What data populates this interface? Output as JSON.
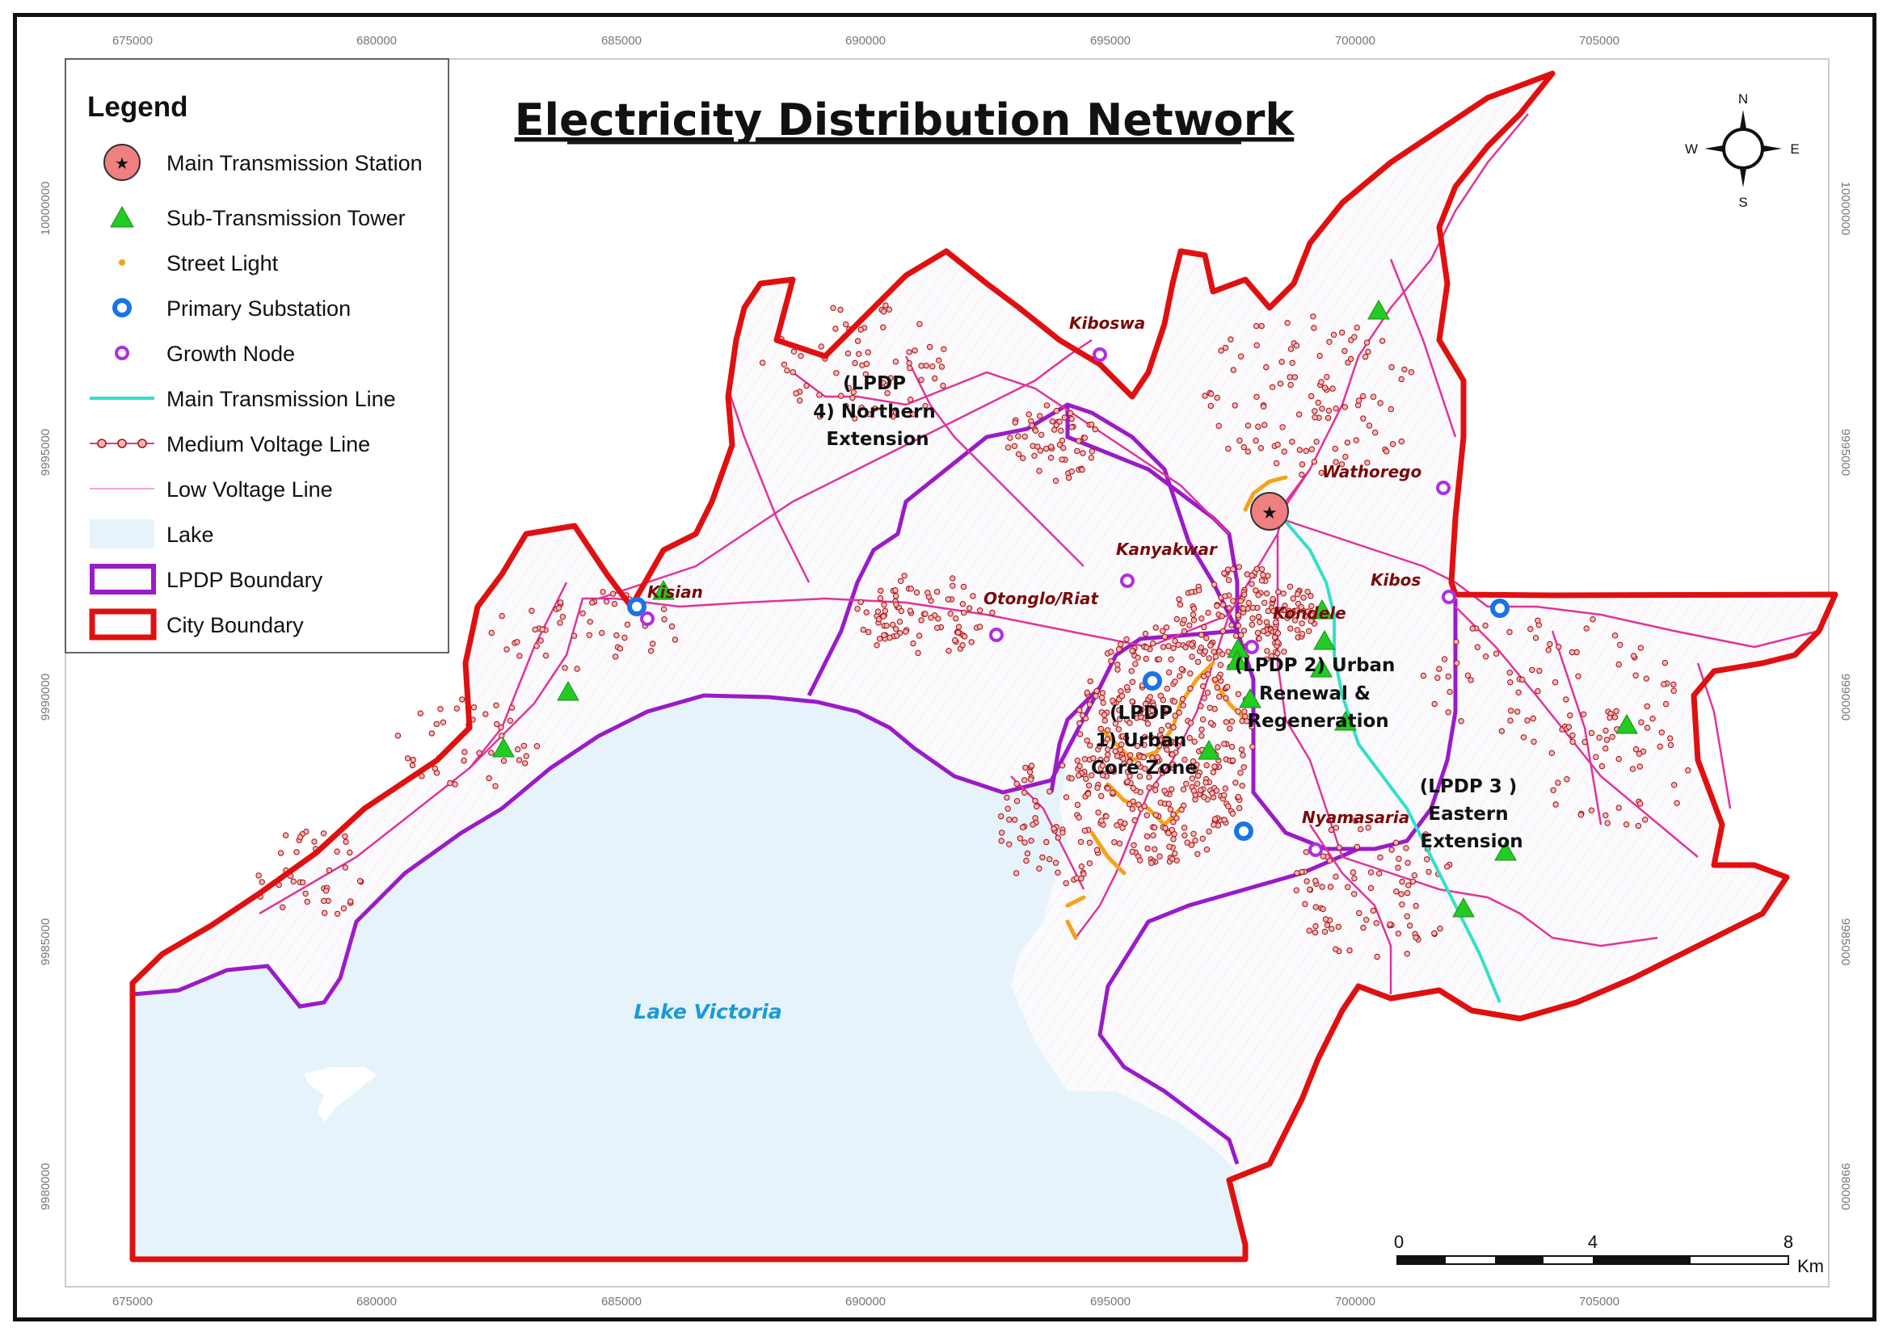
{
  "title": "Electricity Distribution Network",
  "legend": {
    "heading": "Legend",
    "items": [
      {
        "symbol": "main-station-icon",
        "label": "Main Transmission Station"
      },
      {
        "symbol": "tower-icon",
        "label": "Sub-Transmission Tower"
      },
      {
        "symbol": "street-light-icon",
        "label": "Street Light"
      },
      {
        "symbol": "substation-icon",
        "label": "Primary Substation"
      },
      {
        "symbol": "growth-node-icon",
        "label": "Growth Node"
      },
      {
        "symbol": "main-line-icon",
        "label": "Main Transmission Line"
      },
      {
        "symbol": "mv-line-icon",
        "label": "Medium Voltage Line"
      },
      {
        "symbol": "lv-line-icon",
        "label": "Low Voltage Line"
      },
      {
        "symbol": "lake-icon",
        "label": "Lake"
      },
      {
        "symbol": "lpdp-boundary-icon",
        "label": "LPDP Boundary"
      },
      {
        "symbol": "city-boundary-icon",
        "label": "City Boundary"
      }
    ]
  },
  "x_ticks": [
    "675000",
    "680000",
    "685000",
    "690000",
    "695000",
    "700000",
    "705000"
  ],
  "y_ticks": [
    "10000000",
    "9995000",
    "9990000",
    "9985000",
    "9980000"
  ],
  "compass": {
    "n": "N",
    "s": "S",
    "e": "E",
    "w": "W"
  },
  "scale_bar": {
    "labels": [
      "0",
      "4",
      "8"
    ],
    "unit": "Km"
  },
  "places": {
    "kiboswa": "Kiboswa",
    "wathorego": "Wathorego",
    "kanyakwar": "Kanyakwar",
    "kisian": "Kisian",
    "otonglo": "Otonglo/Riat",
    "kondele": "Kondele",
    "kibos": "Kibos",
    "nyamasaria": "Nyamasaria"
  },
  "zones": {
    "z4": [
      "(LPDP",
      "4) Northern",
      "Extension"
    ],
    "z2": [
      "(LPDP 2) Urban",
      "Renewal &",
      "Regeneration"
    ],
    "z1": [
      "(LPDP",
      "1) Urban",
      "Core Zone"
    ],
    "z3": [
      "(LPDP 3 )",
      "Eastern",
      "Extension"
    ]
  },
  "lake_name": "Lake Victoria",
  "colors": {
    "city_boundary": "#e01010",
    "lpdp_boundary": "#9a1bc8",
    "lake": "#e6f3fa",
    "main_line": "#33e0c8",
    "mv_line": "#e0349a",
    "lv_line": "#f4a6d8",
    "street_light": "#f5a21b",
    "tower": "#22cc22",
    "substation": "#1a73e8",
    "growth_node": "#b02ee0",
    "main_station": "#f08080",
    "land": "#fbfafc"
  }
}
